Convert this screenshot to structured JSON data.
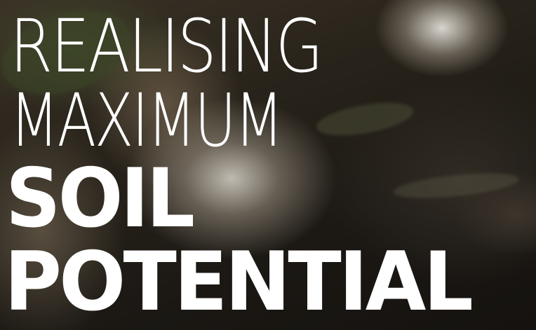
{
  "headline": {
    "line1": "REALISING",
    "line2": "MAXIMUM",
    "line3": "SOIL",
    "line4": "POTENTIAL"
  },
  "colors": {
    "text": "#ffffff",
    "background": "#1c1a17"
  }
}
